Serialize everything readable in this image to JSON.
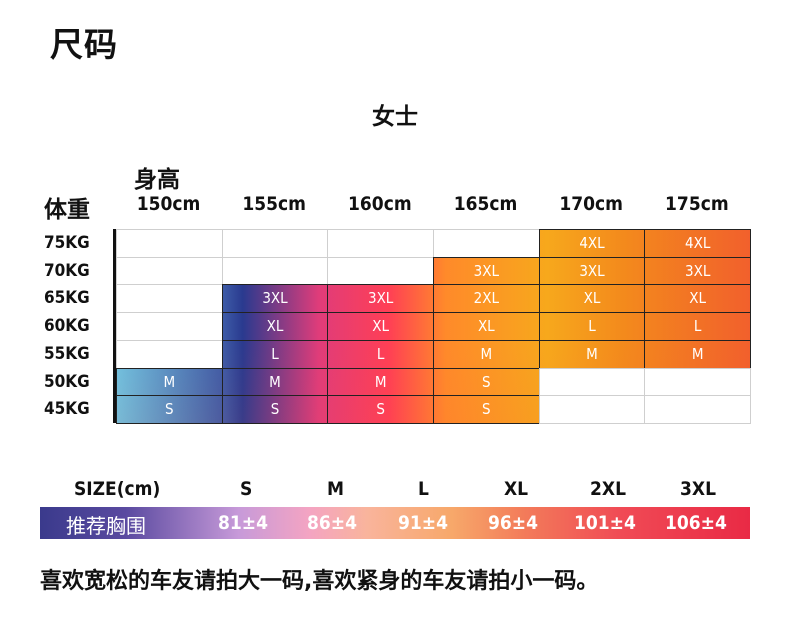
{
  "page_title": "尺码",
  "section_title": "女士",
  "axes": {
    "height_title": "身高",
    "weight_title": "体重"
  },
  "heights": [
    "150cm",
    "155cm",
    "160cm",
    "165cm",
    "170cm",
    "175cm"
  ],
  "weights": [
    "75KG",
    "70KG",
    "65KG",
    "60KG",
    "55KG",
    "50KG",
    "45KG"
  ],
  "size_grid": [
    [
      "",
      "",
      "",
      "",
      "4XL",
      "4XL"
    ],
    [
      "",
      "",
      "",
      "3XL",
      "3XL",
      "3XL"
    ],
    [
      "",
      "3XL",
      "3XL",
      "2XL",
      "XL",
      "XL"
    ],
    [
      "",
      "XL",
      "XL",
      "XL",
      "L",
      "L"
    ],
    [
      "",
      "L",
      "L",
      "M",
      "M",
      "M"
    ],
    [
      "M",
      "M",
      "M",
      "S",
      "",
      ""
    ],
    [
      "S",
      "S",
      "S",
      "S",
      "",
      ""
    ]
  ],
  "size_table": {
    "row_title": "SIZE(cm)",
    "sizes": [
      "S",
      "M",
      "L",
      "XL",
      "2XL",
      "3XL"
    ],
    "chest_title": "推荐胸围",
    "chest": [
      "81±4",
      "86±4",
      "91±4",
      "96±4",
      "101±4",
      "106±4"
    ]
  },
  "note": "喜欢宽松的车友请拍大一码,喜欢紧身的车友请拍小一码。",
  "colors": {
    "blue": "#3d5aa6",
    "pink": "#ff3f55",
    "orange": "#f7a81c"
  }
}
